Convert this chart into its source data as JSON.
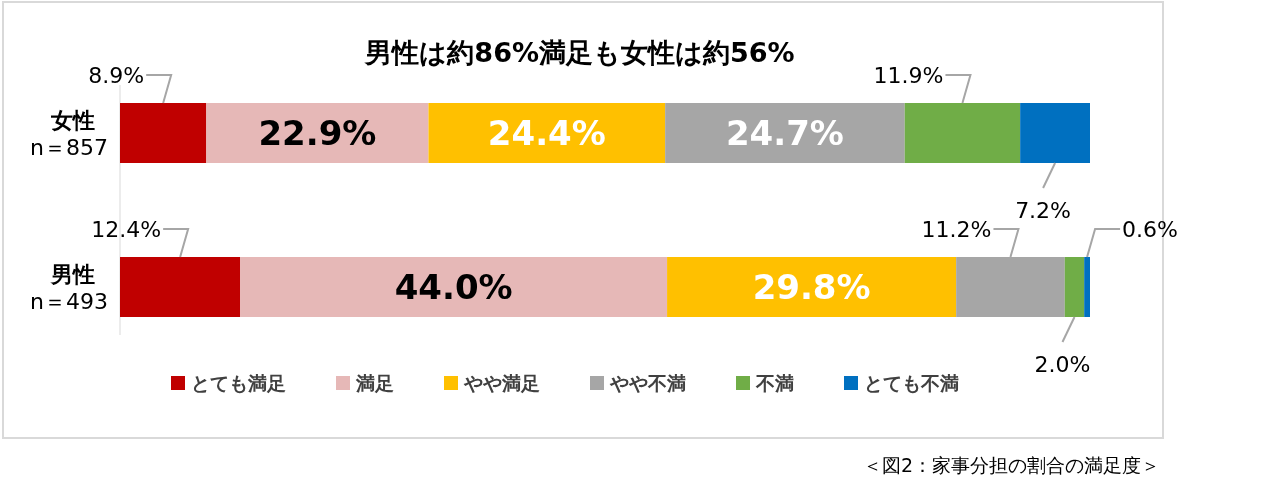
{
  "chart_data": {
    "type": "bar",
    "orientation": "horizontal",
    "stacked": true,
    "title": "男性は約86%満足も女性は約56%",
    "categories": [
      "女性\nn＝857",
      "男性\nn＝493"
    ],
    "series": [
      {
        "name": "とても満足",
        "color": "#c00000",
        "values": [
          8.9,
          12.4
        ],
        "value_labels": [
          "8.9%",
          "12.4%"
        ]
      },
      {
        "name": "満足",
        "color": "#e6b8b7",
        "values": [
          22.9,
          44.0
        ],
        "value_labels": [
          "22.9%",
          "44.0%"
        ]
      },
      {
        "name": "やや満足",
        "color": "#ffc000",
        "values": [
          24.4,
          29.8
        ],
        "value_labels": [
          "24.4%",
          "29.8%"
        ]
      },
      {
        "name": "やや不満",
        "color": "#a6a6a6",
        "values": [
          24.7,
          11.2
        ],
        "value_labels": [
          "24.7%",
          "11.2%"
        ]
      },
      {
        "name": "不満",
        "color": "#70ad47",
        "values": [
          11.9,
          2.0
        ],
        "value_labels": [
          "11.9%",
          "2.0%"
        ]
      },
      {
        "name": "とても不満",
        "color": "#0070c0",
        "values": [
          7.2,
          0.6
        ],
        "value_labels": [
          "7.2%",
          "0.6%"
        ]
      }
    ],
    "legend": "bottom",
    "annotations": [
      "＜図2：家事分担の割合の満足度＞"
    ]
  }
}
